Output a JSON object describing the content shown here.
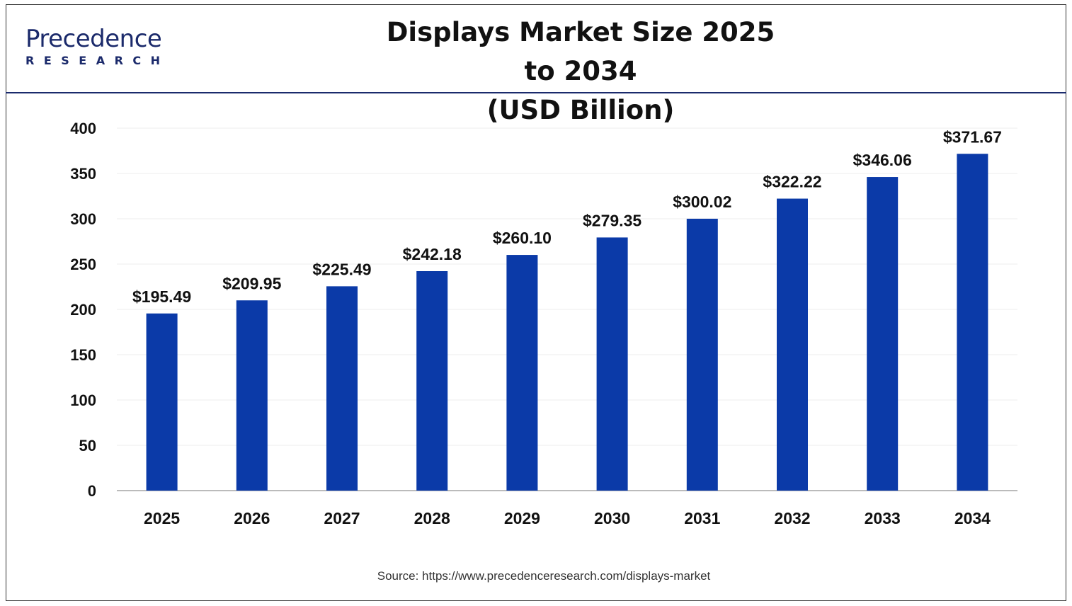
{
  "logo": {
    "line1": "Precedence",
    "line2": "RESEARCH"
  },
  "title_line1": "Displays Market Size 2025 to 2034",
  "title_line2": "(USD Billion)",
  "source": "Source: https://www.precedenceresearch.com/displays-market",
  "chart_data": {
    "type": "bar",
    "title": "Displays Market Size 2025 to 2034 (USD Billion)",
    "categories": [
      "2025",
      "2026",
      "2027",
      "2028",
      "2029",
      "2030",
      "2031",
      "2032",
      "2033",
      "2034"
    ],
    "values": [
      195.49,
      209.95,
      225.49,
      242.18,
      260.1,
      279.35,
      300.02,
      322.22,
      346.06,
      371.67
    ],
    "data_labels": [
      "$195.49",
      "$209.95",
      "$225.49",
      "$242.18",
      "$260.10",
      "$279.35",
      "$300.02",
      "$322.22",
      "$346.06",
      "$371.67"
    ],
    "ylim": [
      0,
      400
    ],
    "yticks": [
      0,
      50,
      100,
      150,
      200,
      250,
      300,
      350,
      400
    ],
    "grid": true,
    "bar_color": "#0b3aa8"
  }
}
